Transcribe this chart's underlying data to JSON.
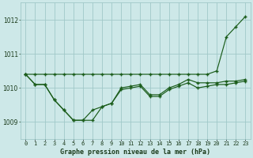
{
  "title": "Graphe pression niveau de la mer (hPa)",
  "background_color": "#cde8e8",
  "grid_color": "#a0c8c8",
  "line_color": "#1a5c1a",
  "x_labels": [
    "0",
    "1",
    "2",
    "3",
    "4",
    "5",
    "6",
    "7",
    "8",
    "9",
    "10",
    "11",
    "12",
    "13",
    "14",
    "15",
    "16",
    "17",
    "18",
    "19",
    "20",
    "21",
    "22",
    "23"
  ],
  "ylim": [
    1008.5,
    1012.5
  ],
  "yticks": [
    1009,
    1010,
    1011,
    1012
  ],
  "series_top": [
    1010.4,
    1010.4,
    1010.4,
    1010.4,
    1010.4,
    1010.4,
    1010.4,
    1010.4,
    1010.4,
    1010.4,
    1010.4,
    1010.4,
    1010.4,
    1010.4,
    1010.4,
    1010.4,
    1010.4,
    1010.4,
    1010.4,
    1010.4,
    1010.5,
    1011.5,
    1011.8,
    1012.1
  ],
  "series_mid": [
    1010.4,
    1010.1,
    1010.1,
    1009.65,
    1009.35,
    1009.05,
    1009.05,
    1009.35,
    1009.45,
    1009.55,
    1010.0,
    1010.05,
    1010.1,
    1009.8,
    1009.8,
    1010.0,
    1010.1,
    1010.25,
    1010.15,
    1010.15,
    1010.15,
    1010.2,
    1010.2,
    1010.25
  ],
  "series_bot": [
    1010.4,
    1010.1,
    1010.1,
    1009.65,
    1009.35,
    1009.05,
    1009.05,
    1009.05,
    1009.45,
    1009.55,
    1009.95,
    1010.0,
    1010.05,
    1009.75,
    1009.75,
    1009.95,
    1010.05,
    1010.15,
    1010.0,
    1010.05,
    1010.1,
    1010.1,
    1010.15,
    1010.2
  ]
}
